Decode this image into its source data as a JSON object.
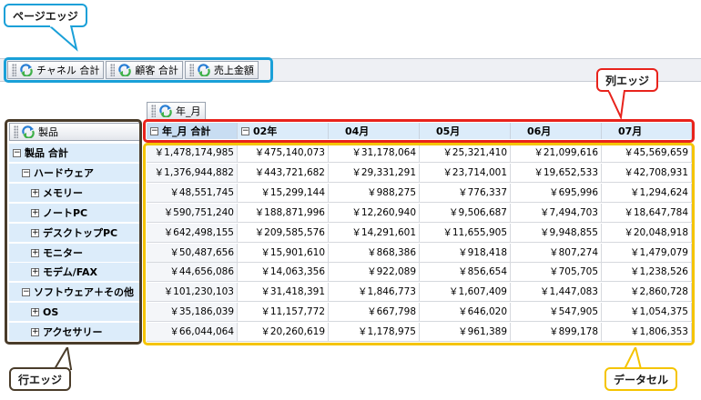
{
  "callouts": {
    "page_edge": "ページエッジ",
    "column_edge": "列エッジ",
    "row_edge": "行エッジ",
    "data_cell": "データセル"
  },
  "page_fields": [
    "チャネル 合計",
    "顧客 合計",
    "売上金額"
  ],
  "column_field": "年_月",
  "row_field": "製品",
  "column_headers": [
    "年_月 合計",
    "02年",
    "04月",
    "05月",
    "06月",
    "07月"
  ],
  "rows": [
    {
      "label": "製品 合計",
      "level": 0,
      "toggle": "−",
      "values": [
        "￥1,478,174,985",
        "￥475,140,073",
        "￥31,178,064",
        "￥25,321,410",
        "￥21,099,616",
        "￥45,569,659"
      ]
    },
    {
      "label": "ハードウェア",
      "level": 1,
      "toggle": "−",
      "values": [
        "￥1,376,944,882",
        "￥443,721,682",
        "￥29,331,291",
        "￥23,714,001",
        "￥19,652,533",
        "￥42,708,931"
      ]
    },
    {
      "label": "メモリー",
      "level": 2,
      "toggle": "+",
      "values": [
        "￥48,551,745",
        "￥15,299,144",
        "￥988,275",
        "￥776,337",
        "￥695,996",
        "￥1,294,624"
      ]
    },
    {
      "label": "ノートPC",
      "level": 2,
      "toggle": "+",
      "values": [
        "￥590,751,240",
        "￥188,871,996",
        "￥12,260,940",
        "￥9,506,687",
        "￥7,494,703",
        "￥18,647,784"
      ]
    },
    {
      "label": "デスクトップPC",
      "level": 2,
      "toggle": "+",
      "values": [
        "￥642,498,155",
        "￥209,585,576",
        "￥14,291,601",
        "￥11,655,905",
        "￥9,948,855",
        "￥20,048,918"
      ]
    },
    {
      "label": "モニター",
      "level": 2,
      "toggle": "+",
      "values": [
        "￥50,487,656",
        "￥15,901,610",
        "￥868,386",
        "￥918,418",
        "￥807,274",
        "￥1,479,079"
      ]
    },
    {
      "label": "モデム/FAX",
      "level": 2,
      "toggle": "+",
      "values": [
        "￥44,656,086",
        "￥14,063,356",
        "￥922,089",
        "￥856,654",
        "￥705,705",
        "￥1,238,526"
      ]
    },
    {
      "label": "ソフトウェア＋その他",
      "level": 1,
      "toggle": "−",
      "values": [
        "￥101,230,103",
        "￥31,418,391",
        "￥1,846,773",
        "￥1,607,409",
        "￥1,447,083",
        "￥2,860,728"
      ]
    },
    {
      "label": "OS",
      "level": 2,
      "toggle": "+",
      "values": [
        "￥35,186,039",
        "￥11,157,772",
        "￥667,798",
        "￥646,020",
        "￥547,905",
        "￥1,054,375"
      ]
    },
    {
      "label": "アクセサリー",
      "level": 2,
      "toggle": "+",
      "values": [
        "￥66,044,064",
        "￥20,260,619",
        "￥1,178,975",
        "￥961,389",
        "￥899,178",
        "￥1,806,353"
      ]
    }
  ],
  "colors": {
    "page_edge": "#1aa0d8",
    "column_edge": "#e8231c",
    "row_edge": "#4a3c2a",
    "data_cell": "#f5c400",
    "header_fill": "#dcecfa"
  }
}
